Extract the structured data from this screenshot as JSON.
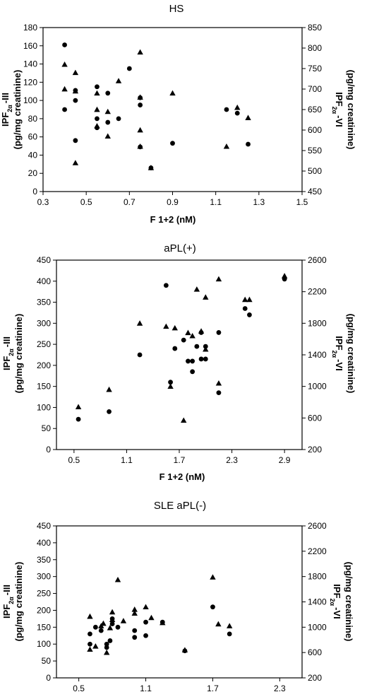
{
  "chart_data": [
    {
      "type": "scatter",
      "title": "HS",
      "xlabel": "F 1+2 (nM)",
      "ylabel_left": {
        "main": "IPF",
        "sub": "2α",
        "tail": "-III",
        "line2": "(pg/mg creatinine)"
      },
      "ylabel_right": {
        "main": "IPF",
        "sub": "2α",
        "tail": "-VI",
        "line2": "(pg/mg creatinine)"
      },
      "xlim": [
        0.3,
        1.5
      ],
      "ylim_left": [
        0,
        180
      ],
      "ylim_right": [
        450,
        850
      ],
      "x_ticks": [
        "0.3",
        "0.5",
        "0.7",
        "0.9",
        "1.1",
        "1.3",
        "1.5"
      ],
      "y_left_ticks": [
        "0",
        "20",
        "40",
        "60",
        "80",
        "100",
        "120",
        "140",
        "160",
        "180"
      ],
      "y_right_ticks": [
        "450",
        "500",
        "550",
        "600",
        "650",
        "700",
        "750",
        "800",
        "850"
      ],
      "series": [
        {
          "marker": "circle",
          "axis": "left",
          "x": [
            0.4,
            0.4,
            0.45,
            0.45,
            0.45,
            0.55,
            0.55,
            0.55,
            0.6,
            0.6,
            0.65,
            0.7,
            0.75,
            0.75,
            0.75,
            0.8,
            0.9,
            1.15,
            1.2,
            1.25
          ],
          "y": [
            161,
            90,
            111,
            100,
            56,
            115,
            80,
            70,
            108,
            76,
            80,
            135,
            103,
            95,
            49,
            26,
            53,
            90,
            86,
            52
          ]
        },
        {
          "marker": "triangle",
          "axis": "right",
          "x": [
            0.4,
            0.4,
            0.45,
            0.45,
            0.45,
            0.55,
            0.55,
            0.55,
            0.6,
            0.6,
            0.65,
            0.75,
            0.75,
            0.75,
            0.75,
            0.8,
            0.9,
            1.15,
            1.2,
            1.25
          ],
          "y": [
            760,
            700,
            740,
            695,
            520,
            690,
            650,
            610,
            645,
            585,
            720,
            790,
            680,
            600,
            560,
            508,
            690,
            560,
            655,
            630
          ]
        }
      ]
    },
    {
      "type": "scatter",
      "title": "aPL(+)",
      "xlabel": "F 1+2 (nM)",
      "ylabel_left": {
        "main": "IPF",
        "sub": "2α",
        "tail": "-III",
        "line2": "(pg/mg creatinine)"
      },
      "ylabel_right": {
        "main": "IPF",
        "sub": "2α",
        "tail": "-VI",
        "line2": "(pg/mg creatinine)"
      },
      "xlim": [
        0.3,
        3.1
      ],
      "ylim_left": [
        0,
        450
      ],
      "ylim_right": [
        200,
        2600
      ],
      "x_ticks": [
        "0.5",
        "1.1",
        "1.7",
        "2.3",
        "2.9"
      ],
      "x_tick_values": [
        0.5,
        1.1,
        1.7,
        2.3,
        2.9
      ],
      "y_left_ticks": [
        "0",
        "50",
        "100",
        "150",
        "200",
        "250",
        "300",
        "350",
        "400",
        "450"
      ],
      "y_right_ticks": [
        "200",
        "600",
        "1000",
        "1400",
        "1800",
        "2200",
        "2600"
      ],
      "series": [
        {
          "marker": "circle",
          "axis": "left",
          "x": [
            0.55,
            0.9,
            1.25,
            1.55,
            1.6,
            1.65,
            1.75,
            1.8,
            1.85,
            1.85,
            1.9,
            1.95,
            1.95,
            2.0,
            2.0,
            2.15,
            2.15,
            2.45,
            2.5,
            2.9
          ],
          "y": [
            72,
            90,
            225,
            390,
            160,
            240,
            260,
            210,
            210,
            185,
            245,
            215,
            278,
            245,
            215,
            135,
            278,
            335,
            320,
            405
          ]
        },
        {
          "marker": "triangle",
          "axis": "right",
          "x": [
            0.55,
            0.9,
            1.25,
            1.55,
            1.6,
            1.65,
            1.75,
            1.8,
            1.85,
            1.9,
            1.95,
            2.0,
            2.0,
            2.15,
            2.15,
            2.45,
            2.5,
            2.9
          ],
          "y": [
            740,
            960,
            1800,
            1760,
            1000,
            1740,
            570,
            1680,
            1640,
            2230,
            1700,
            2130,
            1470,
            1040,
            2360,
            2100,
            2100,
            2400
          ]
        }
      ]
    },
    {
      "type": "scatter",
      "title": "SLE aPL(-)",
      "xlabel": "",
      "ylabel_left": {
        "main": "IPF",
        "sub": "2α",
        "tail": "-III",
        "line2": "(pg/mg creatinine)"
      },
      "ylabel_right": {
        "main": "IPF",
        "sub": "2α",
        "tail": "-VI",
        "line2": "(pg/mg creatinine)"
      },
      "xlim": [
        0.3,
        2.5
      ],
      "ylim_left": [
        0,
        450
      ],
      "ylim_right": [
        200,
        2600
      ],
      "x_ticks": [
        "0.5",
        "1.1",
        "1.7",
        "2.3"
      ],
      "x_tick_values": [
        0.5,
        1.1,
        1.7,
        2.3
      ],
      "y_left_ticks": [
        "0",
        "50",
        "100",
        "150",
        "200",
        "250",
        "300",
        "350",
        "400",
        "450"
      ],
      "y_right_ticks": [
        "200",
        "600",
        "1000",
        "1400",
        "1800",
        "2200",
        "2600"
      ],
      "series": [
        {
          "marker": "circle",
          "axis": "left",
          "x": [
            0.6,
            0.6,
            0.65,
            0.7,
            0.75,
            0.75,
            0.78,
            0.8,
            0.8,
            0.85,
            1.0,
            1.0,
            1.1,
            1.1,
            1.25,
            1.45,
            1.7,
            1.85
          ],
          "y": [
            130,
            100,
            150,
            140,
            100,
            90,
            110,
            175,
            160,
            150,
            140,
            120,
            165,
            125,
            165,
            80,
            210,
            130
          ]
        },
        {
          "marker": "triangle",
          "axis": "right",
          "x": [
            0.6,
            0.6,
            0.65,
            0.7,
            0.72,
            0.75,
            0.78,
            0.8,
            0.8,
            0.85,
            0.9,
            1.0,
            1.0,
            1.1,
            1.15,
            1.25,
            1.45,
            1.7,
            1.75,
            1.85
          ],
          "y": [
            1170,
            650,
            700,
            1020,
            1060,
            600,
            990,
            1240,
            1120,
            1750,
            1100,
            1280,
            1220,
            1320,
            1150,
            1070,
            640,
            1790,
            1050,
            1020
          ]
        }
      ]
    }
  ]
}
